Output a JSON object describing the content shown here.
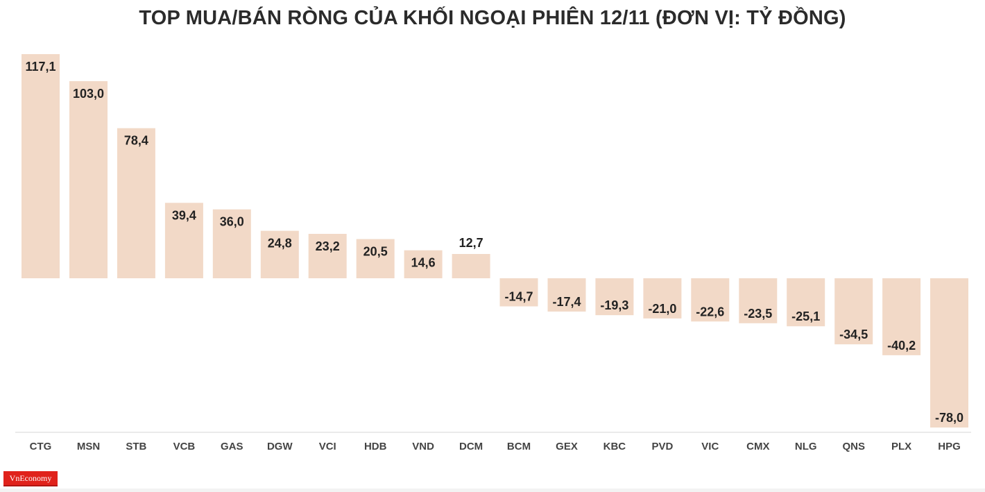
{
  "chart_data": {
    "type": "bar",
    "title": "TOP MUA/BÁN RÒNG CỦA KHỐI NGOẠI PHIÊN 12/11 (ĐƠN VỊ: TỶ ĐỒNG)",
    "categories": [
      "CTG",
      "MSN",
      "STB",
      "VCB",
      "GAS",
      "DGW",
      "VCI",
      "HDB",
      "VND",
      "DCM",
      "BCM",
      "GEX",
      "KBC",
      "PVD",
      "VIC",
      "CMX",
      "NLG",
      "QNS",
      "PLX",
      "HPG"
    ],
    "values": [
      117.1,
      103.0,
      78.4,
      39.4,
      36.0,
      24.8,
      23.2,
      20.5,
      14.6,
      12.7,
      -14.7,
      -17.4,
      -19.3,
      -21.0,
      -22.6,
      -23.5,
      -25.1,
      -34.5,
      -40.2,
      -78.0
    ],
    "value_labels": [
      "117,1",
      "103,0",
      "78,4",
      "39,4",
      "36,0",
      "24,8",
      "23,2",
      "20,5",
      "14,6",
      "12,7",
      "-14,7",
      "-17,4",
      "-19,3",
      "-21,0",
      "-22,6",
      "-23,5",
      "-25,1",
      "-34,5",
      "-40,2",
      "-78,0"
    ],
    "ylim": [
      -78.0,
      117.1
    ],
    "xlabel": "",
    "ylabel": "",
    "grid": false,
    "bar_color": "#f2d9c7",
    "axis_color": "#d6d6d6"
  },
  "logo": {
    "text": "VnEconomy",
    "color": "#e0221b"
  }
}
